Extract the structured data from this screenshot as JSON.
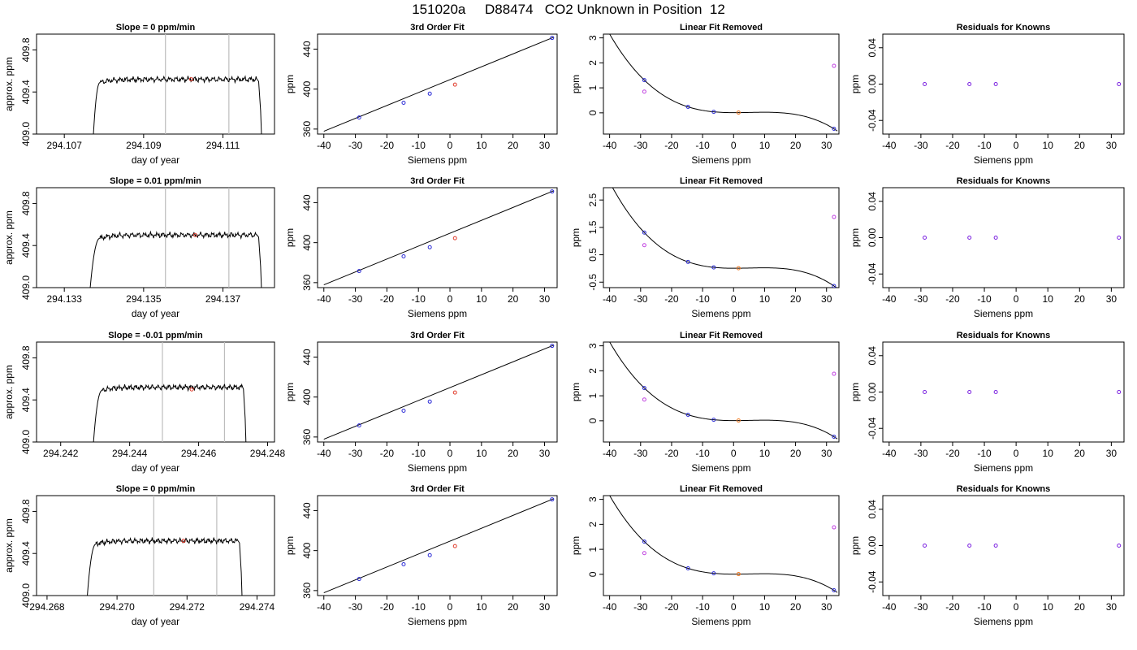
{
  "title": "151020a     D88474   CO2 Unknown in Position  12",
  "colors": {
    "known_points": "#2b2bd6",
    "unknown_point": "#e03a2a",
    "fit_unknown": "#f07820",
    "residual_points": "#7a20e0",
    "linear_offsets": "#c040e0",
    "curve": "#000000",
    "vline": "#bdbdbd"
  },
  "chart_data": [
    {
      "type": "line",
      "row": 0,
      "panel": "time",
      "title": "Slope =  0  ppm/min",
      "xlabel": "day of year",
      "ylabel": "approx. ppm",
      "xlim": [
        294.1063,
        294.1123
      ],
      "ylim": [
        409.0,
        409.95
      ],
      "xticks": [
        294.107,
        294.109,
        294.111
      ],
      "xticklabels": [
        "294.107",
        "294.109",
        "294.111"
      ],
      "yticks": [
        409.0,
        409.4,
        409.8
      ],
      "yticklabels": [
        "409.0",
        "409.4",
        "409.8"
      ],
      "rise_start": 294.1077,
      "plateau_start": 294.1079,
      "fall_end": 294.112,
      "plateau_level": 409.52,
      "vlines": [
        294.10955,
        294.11115
      ],
      "marker": [
        294.1102,
        409.52
      ]
    },
    {
      "type": "scatter",
      "row": 0,
      "panel": "fit",
      "title": "3rd Order Fit",
      "xlabel": "Siemens ppm",
      "ylabel": "ppm",
      "xlim": [
        -42,
        34
      ],
      "ylim": [
        355,
        455
      ],
      "xticks": [
        -40,
        -30,
        -20,
        -10,
        0,
        10,
        20,
        30
      ],
      "xticklabels": [
        "-40",
        "-30",
        "-20",
        "-10",
        "0",
        "10",
        "20",
        "30"
      ],
      "yticks": [
        360,
        400,
        440
      ],
      "yticklabels": [
        "360",
        "400",
        "440"
      ],
      "known": [
        [
          -28.8,
          371.6
        ],
        [
          -14.7,
          386.3
        ],
        [
          -6.4,
          395.4
        ],
        [
          32.4,
          451.2
        ]
      ],
      "unknown": [
        1.6,
        404.5
      ],
      "line": [
        [
          -40,
          357.8
        ],
        [
          33,
          452
        ]
      ]
    },
    {
      "type": "scatter",
      "row": 0,
      "panel": "linear",
      "title": "Linear Fit Removed",
      "xlabel": "Siemens ppm",
      "ylabel": "ppm",
      "xlim": [
        -42,
        34
      ],
      "ylim": [
        -0.85,
        3.15
      ],
      "xticks": [
        -40,
        -30,
        -20,
        -10,
        0,
        10,
        20,
        30
      ],
      "xticklabels": [
        "-40",
        "-30",
        "-20",
        "-10",
        "0",
        "10",
        "20",
        "30"
      ],
      "yticks": [
        0,
        1,
        2,
        3
      ],
      "yticklabels": [
        "0",
        "1",
        "2",
        "3"
      ],
      "curve_a": 0.04,
      "curve_b": 0.032,
      "curve_c": 0.08,
      "curve_e": -0.00037,
      "known": [
        [
          -28.8,
          1.31
        ],
        [
          -14.7,
          0.24
        ],
        [
          -6.4,
          0.04
        ],
        [
          32.4,
          -0.64
        ]
      ],
      "offsets": [
        [
          -28.8,
          0.85
        ],
        [
          32.4,
          1.88
        ]
      ],
      "unknown": [
        1.6,
        0.01
      ]
    },
    {
      "type": "scatter",
      "row": 0,
      "panel": "resid",
      "title": "Residuals for Knowns",
      "xlabel": "Siemens ppm",
      "ylabel": "ppm",
      "xlim": [
        -42,
        34
      ],
      "ylim": [
        -0.055,
        0.055
      ],
      "xticks": [
        -40,
        -30,
        -20,
        -10,
        0,
        10,
        20,
        30
      ],
      "xticklabels": [
        "-40",
        "-30",
        "-20",
        "-10",
        "0",
        "10",
        "20",
        "30"
      ],
      "yticks": [
        -0.04,
        0.0,
        0.04
      ],
      "yticklabels": [
        "-0.04",
        "0.00",
        "0.04"
      ],
      "points": [
        [
          -28.8,
          0
        ],
        [
          -14.7,
          0
        ],
        [
          -6.4,
          0
        ],
        [
          32.4,
          0
        ]
      ]
    },
    {
      "type": "line",
      "row": 1,
      "panel": "time",
      "title": "Slope =  0.01  ppm/min",
      "xlabel": "day of year",
      "ylabel": "approx. ppm",
      "xlim": [
        294.1323,
        294.1383
      ],
      "ylim": [
        409.0,
        409.95
      ],
      "xticks": [
        294.133,
        294.135,
        294.137
      ],
      "xticklabels": [
        "294.133",
        "294.135",
        "294.137"
      ],
      "yticks": [
        409.0,
        409.4,
        409.8
      ],
      "yticklabels": [
        "409.0",
        "409.4",
        "409.8"
      ],
      "rise_start": 294.1336,
      "plateau_start": 294.1339,
      "fall_end": 294.138,
      "plateau_level": 409.5,
      "vlines": [
        294.13555,
        294.13715
      ],
      "marker": [
        294.1363,
        409.5
      ]
    },
    {
      "type": "scatter",
      "row": 1,
      "panel": "fit",
      "title": "3rd Order Fit",
      "xlabel": "Siemens ppm",
      "ylabel": "ppm",
      "xlim": [
        -42,
        34
      ],
      "ylim": [
        355,
        455
      ],
      "xticks": [
        -40,
        -30,
        -20,
        -10,
        0,
        10,
        20,
        30
      ],
      "xticklabels": [
        "-40",
        "-30",
        "-20",
        "-10",
        "0",
        "10",
        "20",
        "30"
      ],
      "yticks": [
        360,
        400,
        440
      ],
      "yticklabels": [
        "360",
        "400",
        "440"
      ],
      "known": [
        [
          -28.8,
          371.6
        ],
        [
          -14.7,
          386.3
        ],
        [
          -6.4,
          395.4
        ],
        [
          32.4,
          451.2
        ]
      ],
      "unknown": [
        1.6,
        404.5
      ],
      "line": [
        [
          -40,
          357.8
        ],
        [
          33,
          452
        ]
      ]
    },
    {
      "type": "scatter",
      "row": 1,
      "panel": "linear",
      "title": "Linear Fit Removed",
      "xlabel": "Siemens ppm",
      "ylabel": "ppm",
      "xlim": [
        -42,
        34
      ],
      "ylim": [
        -0.7,
        2.95
      ],
      "xticks": [
        -40,
        -30,
        -20,
        -10,
        0,
        10,
        20,
        30
      ],
      "xticklabels": [
        "-40",
        "-30",
        "-20",
        "-10",
        "0",
        "10",
        "20",
        "30"
      ],
      "yticks": [
        -0.5,
        0.5,
        1.5,
        2.5
      ],
      "yticklabels": [
        "-0.5",
        "0.5",
        "1.5",
        "2.5"
      ],
      "curve_a": 0.04,
      "curve_b": 0.032,
      "curve_c": 0.08,
      "curve_e": -0.00037,
      "known": [
        [
          -28.8,
          1.31
        ],
        [
          -14.7,
          0.24
        ],
        [
          -6.4,
          0.04
        ],
        [
          32.4,
          -0.64
        ]
      ],
      "offsets": [
        [
          -28.8,
          0.85
        ],
        [
          32.4,
          1.88
        ]
      ],
      "unknown": [
        1.6,
        0.01
      ]
    },
    {
      "type": "scatter",
      "row": 1,
      "panel": "resid",
      "title": "Residuals for Knowns",
      "xlabel": "Siemens ppm",
      "ylabel": "ppm",
      "xlim": [
        -42,
        34
      ],
      "ylim": [
        -0.055,
        0.055
      ],
      "xticks": [
        -40,
        -30,
        -20,
        -10,
        0,
        10,
        20,
        30
      ],
      "xticklabels": [
        "-40",
        "-30",
        "-20",
        "-10",
        "0",
        "10",
        "20",
        "30"
      ],
      "yticks": [
        -0.04,
        0.0,
        0.04
      ],
      "yticklabels": [
        "-0.04",
        "0.00",
        "0.04"
      ],
      "points": [
        [
          -28.8,
          0
        ],
        [
          -14.7,
          0
        ],
        [
          -6.4,
          0
        ],
        [
          32.4,
          0
        ]
      ]
    },
    {
      "type": "line",
      "row": 2,
      "panel": "time",
      "title": "Slope =  -0.01  ppm/min",
      "xlabel": "day of year",
      "ylabel": "approx. ppm",
      "xlim": [
        294.2413,
        294.2482
      ],
      "ylim": [
        409.0,
        409.95
      ],
      "xticks": [
        294.242,
        294.244,
        294.246,
        294.248
      ],
      "xticklabels": [
        "294.242",
        "294.244",
        "294.246",
        "294.248"
      ],
      "yticks": [
        409.0,
        409.4,
        409.8
      ],
      "yticklabels": [
        "409.0",
        "409.4",
        "409.8"
      ],
      "rise_start": 294.2429,
      "plateau_start": 294.2432,
      "fall_end": 294.2474,
      "plateau_level": 409.52,
      "vlines": [
        294.24495,
        294.24675
      ],
      "marker": [
        294.2458,
        409.5
      ]
    },
    {
      "type": "scatter",
      "row": 2,
      "panel": "fit",
      "title": "3rd Order Fit",
      "xlabel": "Siemens ppm",
      "ylabel": "ppm",
      "xlim": [
        -42,
        34
      ],
      "ylim": [
        355,
        455
      ],
      "xticks": [
        -40,
        -30,
        -20,
        -10,
        0,
        10,
        20,
        30
      ],
      "xticklabels": [
        "-40",
        "-30",
        "-20",
        "-10",
        "0",
        "10",
        "20",
        "30"
      ],
      "yticks": [
        360,
        400,
        440
      ],
      "yticklabels": [
        "360",
        "400",
        "440"
      ],
      "known": [
        [
          -28.8,
          371.6
        ],
        [
          -14.7,
          386.3
        ],
        [
          -6.4,
          395.4
        ],
        [
          32.4,
          451.2
        ]
      ],
      "unknown": [
        1.6,
        404.5
      ],
      "line": [
        [
          -40,
          357.8
        ],
        [
          33,
          452
        ]
      ]
    },
    {
      "type": "scatter",
      "row": 2,
      "panel": "linear",
      "title": "Linear Fit Removed",
      "xlabel": "Siemens ppm",
      "ylabel": "ppm",
      "xlim": [
        -42,
        34
      ],
      "ylim": [
        -0.85,
        3.15
      ],
      "xticks": [
        -40,
        -30,
        -20,
        -10,
        0,
        10,
        20,
        30
      ],
      "xticklabels": [
        "-40",
        "-30",
        "-20",
        "-10",
        "0",
        "10",
        "20",
        "30"
      ],
      "yticks": [
        0,
        1,
        2,
        3
      ],
      "yticklabels": [
        "0",
        "1",
        "2",
        "3"
      ],
      "curve_a": 0.04,
      "curve_b": 0.032,
      "curve_c": 0.08,
      "curve_e": -0.00037,
      "known": [
        [
          -28.8,
          1.31
        ],
        [
          -14.7,
          0.24
        ],
        [
          -6.4,
          0.04
        ],
        [
          32.4,
          -0.64
        ]
      ],
      "offsets": [
        [
          -28.8,
          0.85
        ],
        [
          32.4,
          1.88
        ]
      ],
      "unknown": [
        1.6,
        0.01
      ]
    },
    {
      "type": "scatter",
      "row": 2,
      "panel": "resid",
      "title": "Residuals for Knowns",
      "xlabel": "Siemens ppm",
      "ylabel": "ppm",
      "xlim": [
        -42,
        34
      ],
      "ylim": [
        -0.055,
        0.055
      ],
      "xticks": [
        -40,
        -30,
        -20,
        -10,
        0,
        10,
        20,
        30
      ],
      "xticklabels": [
        "-40",
        "-30",
        "-20",
        "-10",
        "0",
        "10",
        "20",
        "30"
      ],
      "yticks": [
        -0.04,
        0.0,
        0.04
      ],
      "yticklabels": [
        "-0.04",
        "0.00",
        "0.04"
      ],
      "points": [
        [
          -28.8,
          0
        ],
        [
          -14.7,
          0
        ],
        [
          -6.4,
          0
        ],
        [
          32.4,
          0
        ]
      ]
    },
    {
      "type": "line",
      "row": 3,
      "panel": "time",
      "title": "Slope =  0  ppm/min",
      "xlabel": "day of year",
      "ylabel": "approx. ppm",
      "xlim": [
        294.2677,
        294.2745
      ],
      "ylim": [
        409.0,
        409.95
      ],
      "xticks": [
        294.268,
        294.27,
        294.272,
        294.274
      ],
      "xticklabels": [
        "294.268",
        "294.270",
        "294.272",
        "294.274"
      ],
      "yticks": [
        409.0,
        409.4,
        409.8
      ],
      "yticklabels": [
        "409.0",
        "409.4",
        "409.8"
      ],
      "rise_start": 294.2691,
      "plateau_start": 294.2694,
      "fall_end": 294.2736,
      "plateau_level": 409.52,
      "vlines": [
        294.27105,
        294.27285
      ],
      "marker": [
        294.2719,
        409.52
      ]
    },
    {
      "type": "scatter",
      "row": 3,
      "panel": "fit",
      "title": "3rd Order Fit",
      "xlabel": "Siemens ppm",
      "ylabel": "ppm",
      "xlim": [
        -42,
        34
      ],
      "ylim": [
        355,
        455
      ],
      "xticks": [
        -40,
        -30,
        -20,
        -10,
        0,
        10,
        20,
        30
      ],
      "xticklabels": [
        "-40",
        "-30",
        "-20",
        "-10",
        "0",
        "10",
        "20",
        "30"
      ],
      "yticks": [
        360,
        400,
        440
      ],
      "yticklabels": [
        "360",
        "400",
        "440"
      ],
      "known": [
        [
          -28.8,
          371.6
        ],
        [
          -14.7,
          386.3
        ],
        [
          -6.4,
          395.4
        ],
        [
          32.4,
          451.2
        ]
      ],
      "unknown": [
        1.6,
        404.5
      ],
      "line": [
        [
          -40,
          357.8
        ],
        [
          33,
          452
        ]
      ]
    },
    {
      "type": "scatter",
      "row": 3,
      "panel": "linear",
      "title": "Linear Fit Removed",
      "xlabel": "Siemens ppm",
      "ylabel": "ppm",
      "xlim": [
        -42,
        34
      ],
      "ylim": [
        -0.85,
        3.15
      ],
      "xticks": [
        -40,
        -30,
        -20,
        -10,
        0,
        10,
        20,
        30
      ],
      "xticklabels": [
        "-40",
        "-30",
        "-20",
        "-10",
        "0",
        "10",
        "20",
        "30"
      ],
      "yticks": [
        0,
        1,
        2,
        3
      ],
      "yticklabels": [
        "0",
        "1",
        "2",
        "3"
      ],
      "curve_a": 0.04,
      "curve_b": 0.032,
      "curve_c": 0.08,
      "curve_e": -0.00037,
      "known": [
        [
          -28.8,
          1.31
        ],
        [
          -14.7,
          0.24
        ],
        [
          -6.4,
          0.04
        ],
        [
          32.4,
          -0.64
        ]
      ],
      "offsets": [
        [
          -28.8,
          0.85
        ],
        [
          32.4,
          1.88
        ]
      ],
      "unknown": [
        1.6,
        0.01
      ]
    },
    {
      "type": "scatter",
      "row": 3,
      "panel": "resid",
      "title": "Residuals for Knowns",
      "xlabel": "Siemens ppm",
      "ylabel": "ppm",
      "xlim": [
        -42,
        34
      ],
      "ylim": [
        -0.055,
        0.055
      ],
      "xticks": [
        -40,
        -30,
        -20,
        -10,
        0,
        10,
        20,
        30
      ],
      "xticklabels": [
        "-40",
        "-30",
        "-20",
        "-10",
        "0",
        "10",
        "20",
        "30"
      ],
      "yticks": [
        -0.04,
        0.0,
        0.04
      ],
      "yticklabels": [
        "-0.04",
        "0.00",
        "0.04"
      ],
      "points": [
        [
          -28.8,
          0
        ],
        [
          -14.7,
          0
        ],
        [
          -6.4,
          0
        ],
        [
          32.4,
          0
        ]
      ]
    }
  ]
}
